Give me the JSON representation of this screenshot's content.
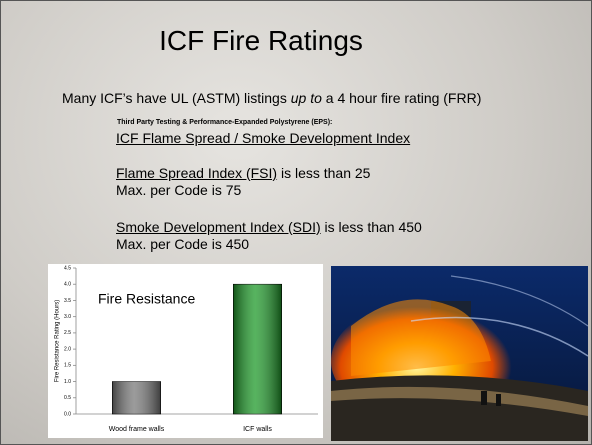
{
  "slide": {
    "title": "ICF Fire Ratings",
    "intro": {
      "before": "Many ICF’s have UL (ASTM) listings ",
      "italic": "up to",
      "after": " a 4 hour fire rating (FRR)"
    },
    "testing_note": "Third Party Testing & Performance-Expanded Polystyrene (EPS):",
    "index_heading": "ICF Flame Spread / Smoke Development Index",
    "fsi": {
      "term": "Flame Spread Index (FSI)",
      "rest": " is less than 25",
      "max": "Max. per Code is 75"
    },
    "sdi": {
      "term": "Smoke Development Index (SDI)",
      "rest": " is less than 450",
      "max": "Max. per Code is 450"
    }
  },
  "chart_data": {
    "type": "bar",
    "title": "Fire Resistance",
    "y_label": "Fire Resistance Rating (Hours)",
    "categories": [
      "Wood frame walls",
      "ICF walls"
    ],
    "values": [
      1,
      4
    ],
    "colors": [
      "#7a7a7a",
      "#1f9a2a"
    ],
    "ylim": [
      0,
      4.5
    ],
    "yticks": [
      {
        "value": 0,
        "label": "0.0"
      },
      0.5,
      {
        "value": 1,
        "label": "1.0"
      },
      1.5,
      {
        "value": 2,
        "label": "2.0"
      },
      2.5,
      {
        "value": 3,
        "label": "3.0"
      },
      3.5,
      {
        "value": 4,
        "label": "4.0"
      },
      4.5
    ],
    "grid": false
  }
}
